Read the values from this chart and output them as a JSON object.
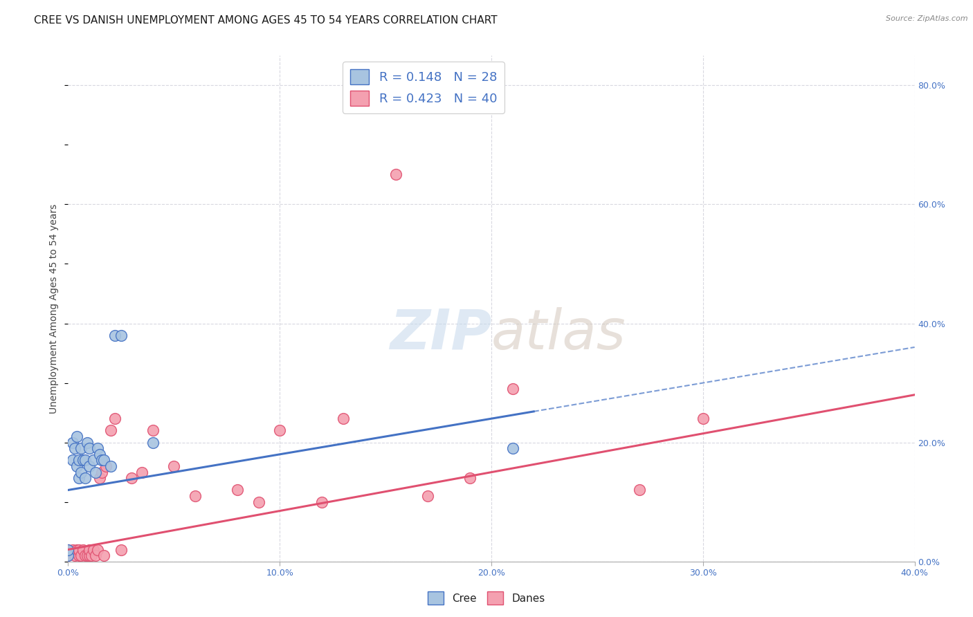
{
  "title": "CREE VS DANISH UNEMPLOYMENT AMONG AGES 45 TO 54 YEARS CORRELATION CHART",
  "source": "Source: ZipAtlas.com",
  "ylabel": "Unemployment Among Ages 45 to 54 years",
  "xlim": [
    0.0,
    0.4
  ],
  "ylim": [
    0.0,
    0.85
  ],
  "xticks": [
    0.0,
    0.1,
    0.2,
    0.3,
    0.4
  ],
  "xticklabels": [
    "0.0%",
    "10.0%",
    "20.0%",
    "30.0%",
    "40.0%"
  ],
  "yticks_right": [
    0.0,
    0.2,
    0.4,
    0.6,
    0.8
  ],
  "yticklabels_right": [
    "0.0%",
    "20.0%",
    "40.0%",
    "60.0%",
    "80.0%"
  ],
  "cree_r": 0.148,
  "cree_n": 28,
  "danes_r": 0.423,
  "danes_n": 40,
  "cree_color": "#a8c4e0",
  "danes_color": "#f4a0b0",
  "cree_line_color": "#4472c4",
  "danes_line_color": "#e05070",
  "background_color": "#ffffff",
  "grid_color": "#d8d8e0",
  "cree_points_x": [
    0.0,
    0.0,
    0.002,
    0.002,
    0.003,
    0.004,
    0.004,
    0.005,
    0.005,
    0.006,
    0.006,
    0.007,
    0.008,
    0.008,
    0.009,
    0.01,
    0.01,
    0.012,
    0.013,
    0.014,
    0.015,
    0.016,
    0.017,
    0.02,
    0.022,
    0.025,
    0.04,
    0.21
  ],
  "cree_points_y": [
    0.01,
    0.02,
    0.17,
    0.2,
    0.19,
    0.16,
    0.21,
    0.14,
    0.17,
    0.15,
    0.19,
    0.17,
    0.14,
    0.17,
    0.2,
    0.16,
    0.19,
    0.17,
    0.15,
    0.19,
    0.18,
    0.17,
    0.17,
    0.16,
    0.38,
    0.38,
    0.2,
    0.19
  ],
  "danes_points_x": [
    0.0,
    0.0,
    0.002,
    0.003,
    0.004,
    0.005,
    0.005,
    0.006,
    0.007,
    0.008,
    0.009,
    0.01,
    0.01,
    0.011,
    0.012,
    0.013,
    0.014,
    0.015,
    0.016,
    0.017,
    0.018,
    0.02,
    0.022,
    0.025,
    0.03,
    0.035,
    0.04,
    0.05,
    0.06,
    0.08,
    0.09,
    0.1,
    0.12,
    0.13,
    0.155,
    0.17,
    0.19,
    0.21,
    0.27,
    0.3
  ],
  "danes_points_y": [
    0.01,
    0.02,
    0.02,
    0.01,
    0.02,
    0.01,
    0.02,
    0.01,
    0.02,
    0.01,
    0.01,
    0.01,
    0.02,
    0.01,
    0.02,
    0.01,
    0.02,
    0.14,
    0.15,
    0.01,
    0.16,
    0.22,
    0.24,
    0.02,
    0.14,
    0.15,
    0.22,
    0.16,
    0.11,
    0.12,
    0.1,
    0.22,
    0.1,
    0.24,
    0.65,
    0.11,
    0.14,
    0.29,
    0.12,
    0.24
  ],
  "title_fontsize": 11,
  "axis_label_fontsize": 10,
  "tick_fontsize": 9,
  "legend_fontsize": 13
}
